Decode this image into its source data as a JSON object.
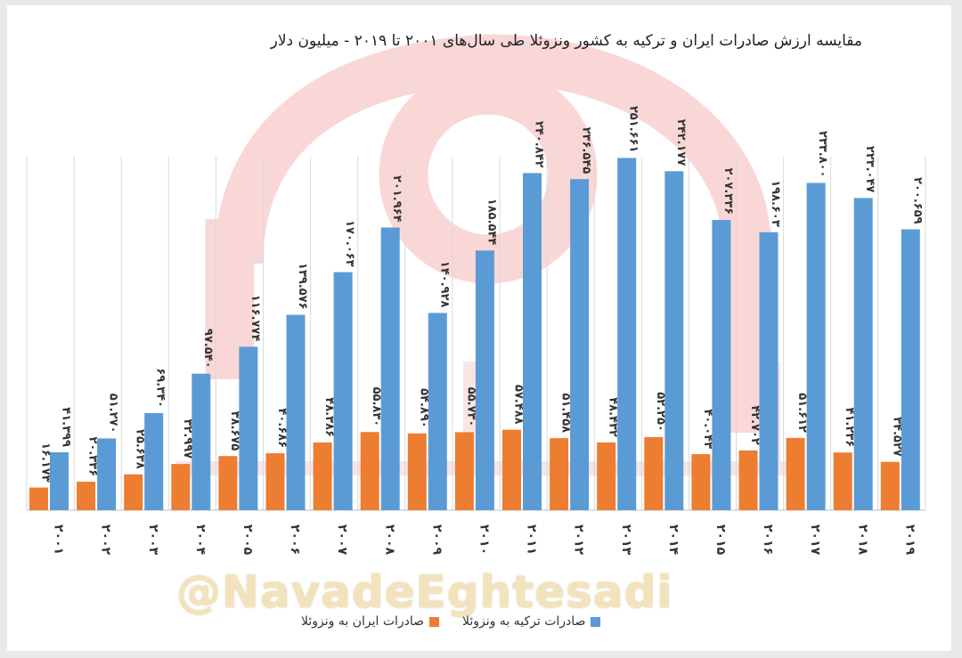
{
  "chart_data": {
    "type": "bar",
    "title": "مقایسه ارزش صادرات ایران و ترکیه به کشور ونزوئلا طی سال‌های ۲۰۰۱ تا ۲۰۱۹ - میلیون دلار",
    "categories": [
      "۲۰۰۱",
      "۲۰۰۲",
      "۲۰۰۳",
      "۲۰۰۴",
      "۲۰۰۵",
      "۲۰۰۶",
      "۲۰۰۷",
      "۲۰۰۸",
      "۲۰۰۹",
      "۲۰۱۰",
      "۲۰۱۱",
      "۲۰۱۲",
      "۲۰۱۳",
      "۲۰۱۴",
      "۲۰۱۵",
      "۲۰۱۶",
      "۲۰۱۷",
      "۲۰۱۸",
      "۲۰۱۹"
    ],
    "series": [
      {
        "name": "صادرات ایران به ونزوئلا",
        "color": "#ed7d31",
        "values": [
          16.173,
          20.336,
          25.638,
          32.997,
          38.675,
          40.686,
          48.386,
          55.83,
          54.89,
          55.73,
          57.488,
          51.458,
          48.432,
          52.25,
          40.043,
          42.702,
          51.612,
          41.236,
          34.527
        ],
        "labels": [
          "۱۶.۱۷۳",
          "۲۰.۳۳۶",
          "۲۵.۶۳۸",
          "۳۲.۹۹۷",
          "۳۸.۶۷۵",
          "۴۰.۶۸۶",
          "۴۸.۳۸۶",
          "۵۵.۸۳۰",
          "۵۴.۸۹۰",
          "۵۵.۷۳۰",
          "۵۷.۴۸۸",
          "۵۱.۴۵۸",
          "۴۸.۴۳۲",
          "۵۲.۲۵۰",
          "۴۰.۰۴۳",
          "۴۲.۷۰۲",
          "۵۱.۶۱۲",
          "۴۱.۲۳۶",
          "۳۴.۵۲۷"
        ]
      },
      {
        "name": "صادرات ترکیه به ونزوئلا",
        "color": "#5b9bd5",
        "values": [
          41.399,
          51.27,
          69.34,
          97.54,
          116.774,
          139.576,
          170.063,
          201.964,
          140.928,
          185.544,
          240.842,
          236.545,
          251.661,
          242.177,
          207.336,
          198.603,
          233.8,
          223.047,
          200.659
        ],
        "labels": [
          "۴۱.۳۹۹",
          "۵۱.۲۷۰",
          "۶۹.۳۴۰",
          "۹۷.۵۴۰",
          "۱۱۶.۷۷۴",
          "۱۳۹.۵۷۶",
          "۱۷۰.۰۶۳",
          "۲۰۱.۹۶۴",
          "۱۴۰.۹۲۸",
          "۱۸۵.۵۴۴",
          "۲۴۰.۸۴۲",
          "۲۳۶.۵۴۵",
          "۲۵۱.۶۶۱",
          "۲۴۲.۱۷۷",
          "۲۰۷.۳۳۶",
          "۱۹۸.۶۰۳",
          "۲۳۳.۸۰۰",
          "۲۲۳.۰۴۷",
          "۲۰۰.۶۵۹"
        ]
      }
    ],
    "ylim": [
      0,
      280
    ],
    "grid": "vertical",
    "legend_position": "bottom"
  },
  "watermark": {
    "handle": "@NavadeEghtesadi",
    "logo_color": "#f4a3a3"
  }
}
